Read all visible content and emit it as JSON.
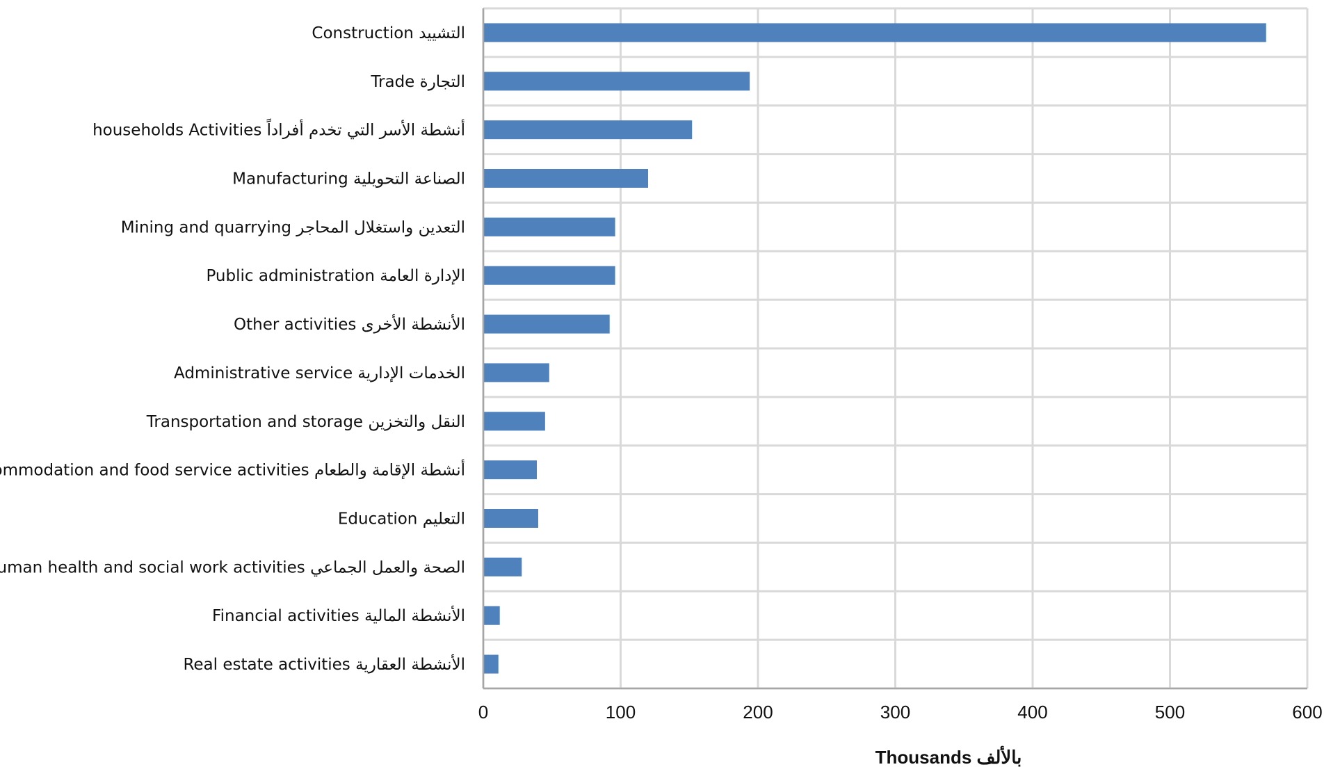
{
  "chart_data": {
    "type": "bar",
    "orientation": "horizontal",
    "categories": [
      "Construction التشييد",
      "Trade التجارة",
      "households Activities أنشطة الأسر التي تخدم أفراداً",
      "Manufacturing الصناعة التحويلية",
      "Mining and quarrying التعدين واستغلال المحاجر",
      "Public administration الإدارة العامة",
      "Other activities الأنشطة الأخرى",
      "Administrative service  الخدمات الإدارية",
      "Transportation and storage النقل والتخزين",
      "Accommodation and food service activities أنشطة الإقامة والطعام",
      "Education التعليم",
      "Human health and social work activities الصحة والعمل الجماعي",
      "Financial activities الأنشطة المالية",
      "Real estate activities الأنشطة العقارية"
    ],
    "values": [
      570,
      194,
      152,
      120,
      96,
      96,
      92,
      48,
      45,
      39,
      40,
      28,
      12,
      11
    ],
    "xlabel": "Thousands بالألف",
    "xlim": [
      0,
      600
    ],
    "xticks": [
      0,
      100,
      200,
      300,
      400,
      500,
      600
    ],
    "grid": true,
    "bar_color": "#4f81bd",
    "grid_color": "#d9d9d9"
  }
}
